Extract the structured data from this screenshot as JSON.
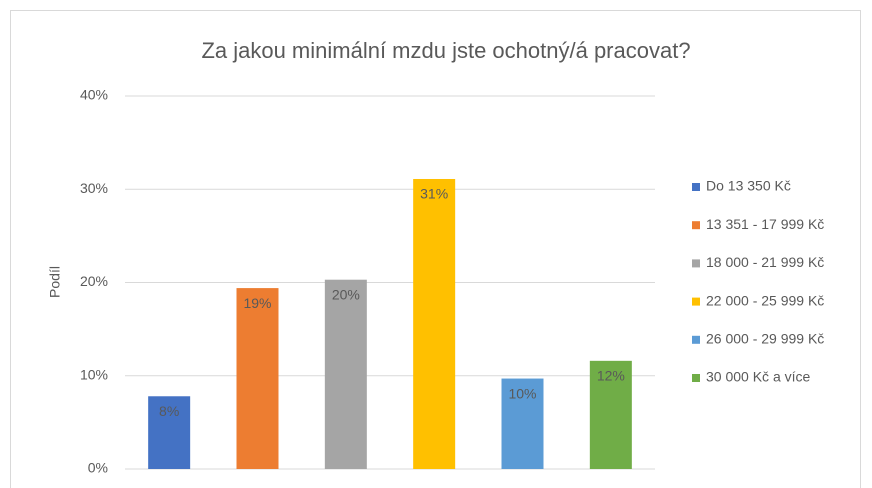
{
  "chart_data": {
    "type": "bar",
    "title": "Za jakou minimální mzdu jste ochotný/á pracovat?",
    "y_label": "Podíl",
    "series": [
      {
        "name": "Do 13 350 Kč",
        "color": "#4472c4",
        "values": [
          7.8
        ],
        "value_labels": [
          "8%"
        ]
      },
      {
        "name": "13 351 - 17 999 Kč",
        "color": "#ed7d31",
        "values": [
          19.4
        ],
        "value_labels": [
          "19%"
        ]
      },
      {
        "name": "18 000 - 21 999 Kč",
        "color": "#a5a5a5",
        "values": [
          20.3
        ],
        "value_labels": [
          "20%"
        ]
      },
      {
        "name": "22 000 - 25 999 Kč",
        "color": "#ffc000",
        "values": [
          31.1
        ],
        "value_labels": [
          "31%"
        ]
      },
      {
        "name": "26 000 - 29 999 Kč",
        "color": "#5b9bd5",
        "values": [
          9.7
        ],
        "value_labels": [
          "10%"
        ]
      },
      {
        "name": "30 000 Kč a více",
        "color": "#70ad47",
        "values": [
          11.6
        ],
        "value_labels": [
          "12%"
        ]
      }
    ],
    "ylim": [
      0,
      40
    ],
    "yticks": [
      {
        "value": 0,
        "label": "0%"
      },
      {
        "value": 10,
        "label": "10%"
      },
      {
        "value": 20,
        "label": "20%"
      },
      {
        "value": 30,
        "label": "30%"
      },
      {
        "value": 40,
        "label": "40%"
      }
    ],
    "grid": true,
    "legend": "right"
  }
}
